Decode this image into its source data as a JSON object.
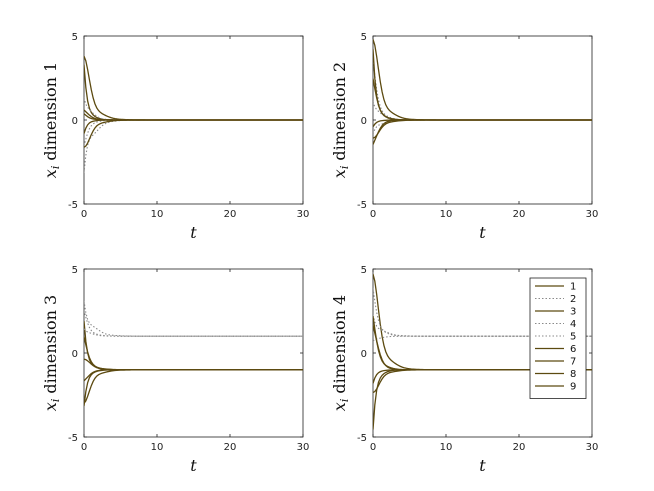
{
  "chart_data": [
    {
      "type": "line",
      "ylabel_var": "x",
      "ylabel_sub": "i",
      "ylabel_text": "dimension 1",
      "xlabel": "t",
      "xlim": [
        0,
        30
      ],
      "ylim": [
        -5,
        5
      ],
      "xticks": [
        "0",
        "10",
        "20",
        "30"
      ],
      "yticks": [
        "-5",
        "0",
        "5"
      ],
      "series": [
        {
          "name": "1",
          "start": 3.8,
          "end": 0,
          "style": "solid"
        },
        {
          "name": "2",
          "start": -1.2,
          "end": 0,
          "style": "dotted"
        },
        {
          "name": "3",
          "start": 2.5,
          "end": 0,
          "style": "solid"
        },
        {
          "name": "4",
          "start": -3.0,
          "end": 0,
          "style": "dotted"
        },
        {
          "name": "5",
          "start": 1.8,
          "end": 0,
          "style": "dotted"
        },
        {
          "name": "6",
          "start": 0.9,
          "end": 0,
          "style": "solid"
        },
        {
          "name": "7",
          "start": -1.8,
          "end": 0,
          "style": "solid"
        },
        {
          "name": "8",
          "start": 0.3,
          "end": 0,
          "style": "solid"
        },
        {
          "name": "9",
          "start": -0.6,
          "end": 0,
          "style": "solid"
        }
      ]
    },
    {
      "type": "line",
      "ylabel_var": "x",
      "ylabel_sub": "i",
      "ylabel_text": "dimension 2",
      "xlabel": "t",
      "xlim": [
        0,
        30
      ],
      "ylim": [
        -5,
        5
      ],
      "xticks": [
        "0",
        "10",
        "20",
        "30"
      ],
      "yticks": [
        "-5",
        "0",
        "5"
      ],
      "series": [
        {
          "name": "1",
          "start": 4.8,
          "end": 0,
          "style": "solid"
        },
        {
          "name": "2",
          "start": 2.8,
          "end": 0,
          "style": "dotted"
        },
        {
          "name": "3",
          "start": 3.2,
          "end": 0,
          "style": "solid"
        },
        {
          "name": "4",
          "start": -0.8,
          "end": 0,
          "style": "dotted"
        },
        {
          "name": "5",
          "start": 1.5,
          "end": 0,
          "style": "dotted"
        },
        {
          "name": "6",
          "start": -2.2,
          "end": 0,
          "style": "solid"
        },
        {
          "name": "7",
          "start": -1.2,
          "end": 0,
          "style": "solid"
        },
        {
          "name": "8",
          "start": 2.0,
          "end": 0,
          "style": "solid"
        },
        {
          "name": "9",
          "start": -0.3,
          "end": 0,
          "style": "solid"
        }
      ]
    },
    {
      "type": "line",
      "ylabel_var": "x",
      "ylabel_sub": "i",
      "ylabel_text": "dimension 3",
      "xlabel": "t",
      "xlim": [
        0,
        30
      ],
      "ylim": [
        -5,
        5
      ],
      "xticks": [
        "0",
        "10",
        "20",
        "30"
      ],
      "yticks": [
        "-5",
        "0",
        "5"
      ],
      "series": [
        {
          "name": "1",
          "start": -3.0,
          "end": -1,
          "style": "solid"
        },
        {
          "name": "2",
          "start": 2.2,
          "end": 1,
          "style": "dotted"
        },
        {
          "name": "3",
          "start": 1.2,
          "end": -1,
          "style": "solid"
        },
        {
          "name": "4",
          "start": 3.0,
          "end": 1,
          "style": "dotted"
        },
        {
          "name": "5",
          "start": 1.6,
          "end": 1,
          "style": "dotted"
        },
        {
          "name": "6",
          "start": -2.0,
          "end": -1,
          "style": "solid"
        },
        {
          "name": "7",
          "start": -0.3,
          "end": -1,
          "style": "solid"
        },
        {
          "name": "8",
          "start": 0.6,
          "end": -1,
          "style": "solid"
        },
        {
          "name": "9",
          "start": -2.6,
          "end": -1,
          "style": "solid"
        }
      ]
    },
    {
      "type": "line",
      "ylabel_var": "x",
      "ylabel_sub": "i",
      "ylabel_text": "dimension 4",
      "xlabel": "t",
      "xlim": [
        0,
        30
      ],
      "ylim": [
        -5,
        5
      ],
      "xticks": [
        "0",
        "10",
        "20",
        "30"
      ],
      "yticks": [
        "-5",
        "0",
        "5"
      ],
      "legend": {
        "position": "top-right",
        "entries": [
          "1",
          "2",
          "3",
          "4",
          "5",
          "6",
          "7",
          "8",
          "9"
        ]
      },
      "series": [
        {
          "name": "1",
          "start": 4.7,
          "end": -1,
          "style": "solid"
        },
        {
          "name": "2",
          "start": 3.2,
          "end": 1,
          "style": "dotted"
        },
        {
          "name": "3",
          "start": -3.7,
          "end": -1,
          "style": "solid"
        },
        {
          "name": "4",
          "start": 2.2,
          "end": 1,
          "style": "dotted"
        },
        {
          "name": "5",
          "start": 0.6,
          "end": 1,
          "style": "dotted"
        },
        {
          "name": "6",
          "start": 3.0,
          "end": -1,
          "style": "solid"
        },
        {
          "name": "7",
          "start": -2.5,
          "end": -1,
          "style": "solid"
        },
        {
          "name": "8",
          "start": 1.6,
          "end": -1,
          "style": "solid"
        },
        {
          "name": "9",
          "start": -1.6,
          "end": -1,
          "style": "solid"
        }
      ]
    }
  ],
  "colors": {
    "solid_line": "#5c4a10",
    "dotted_line": "#8a8a8a",
    "axes": "#222222"
  }
}
